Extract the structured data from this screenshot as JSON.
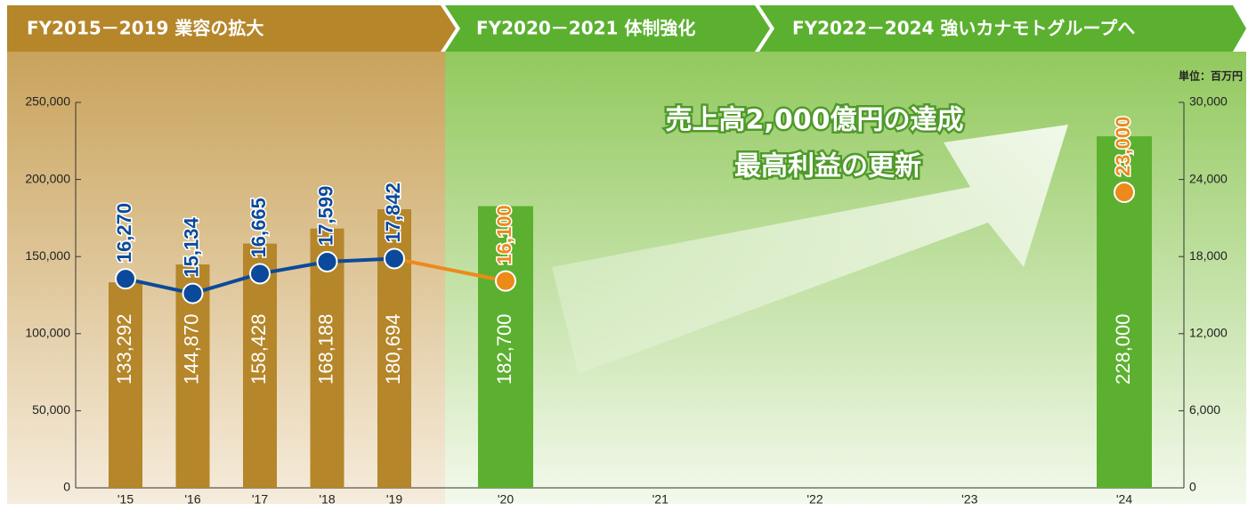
{
  "header": {
    "phases": [
      "FY2015－2019 業容の拡大",
      "FY2020－2021 体制強化",
      "FY2022－2024 強いカナモトグループへ"
    ],
    "unit": "単位：百万円"
  },
  "chart_data": {
    "type": "bar",
    "annotations": [
      "売上高2,000億円の達成",
      "最高利益の更新"
    ],
    "categories": [
      "'15",
      "'16",
      "'17",
      "'18",
      "'19",
      "'20",
      "'21",
      "'22",
      "'23",
      "'24"
    ],
    "series": [
      {
        "type": "bar",
        "colors": [
          "#b5862a",
          "#b5862a",
          "#b5862a",
          "#b5862a",
          "#b5862a",
          "#5cb030",
          null,
          null,
          null,
          "#5cb030"
        ],
        "values": [
          133292,
          144870,
          158428,
          168188,
          180694,
          182700,
          null,
          null,
          null,
          228000
        ],
        "value_labels": [
          "133,292",
          "144,870",
          "158,428",
          "168,188",
          "180,694",
          "182,700",
          null,
          null,
          null,
          "228,000"
        ]
      },
      {
        "type": "line",
        "axis": "y2",
        "colors": [
          "#0b4a9a",
          "#0b4a9a",
          "#0b4a9a",
          "#0b4a9a",
          "#0b4a9a",
          "#ec8a1a",
          null,
          null,
          null,
          "#ec8a1a"
        ],
        "values": [
          16270,
          15134,
          16665,
          17599,
          17842,
          16100,
          null,
          null,
          null,
          23000
        ],
        "value_labels": [
          "16,270",
          "15,134",
          "16,665",
          "17,599",
          "17,842",
          "16,100",
          null,
          null,
          null,
          "23,000"
        ]
      }
    ],
    "ylim": [
      0,
      250000
    ],
    "yticks": [
      0,
      {
        "value": 50000,
        "label": "50,000"
      },
      {
        "value": 100000,
        "label": "100,000"
      },
      {
        "value": 150000,
        "label": "150,000"
      },
      {
        "value": 200000,
        "label": "200,000"
      },
      {
        "value": 250000,
        "label": "250,000"
      }
    ],
    "y2lim": [
      0,
      30000
    ],
    "y2ticks": [
      0,
      {
        "value": 6000,
        "label": "6,000"
      },
      {
        "value": 12000,
        "label": "12,000"
      },
      {
        "value": 18000,
        "label": "18,000"
      },
      {
        "value": 24000,
        "label": "24,000"
      },
      {
        "value": 30000,
        "label": "30,000"
      }
    ]
  }
}
